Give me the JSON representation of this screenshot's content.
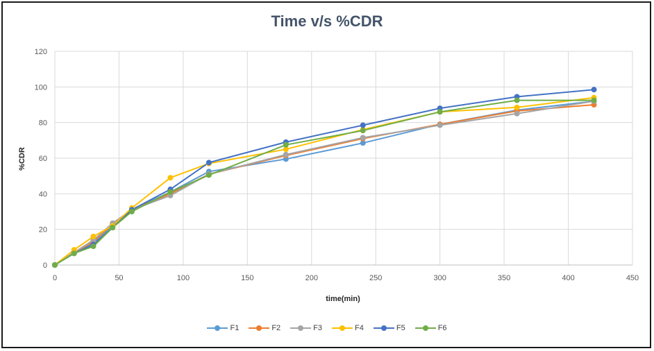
{
  "chart_data": {
    "type": "line",
    "title": "Time v/s %CDR",
    "xlabel": "time(min)",
    "ylabel": "%CDR",
    "xlim": [
      0,
      450
    ],
    "ylim": [
      0,
      120
    ],
    "x_ticks": [
      0,
      50,
      100,
      150,
      200,
      250,
      300,
      350,
      400,
      450
    ],
    "y_ticks": [
      0,
      20,
      40,
      60,
      80,
      100,
      120
    ],
    "grid": true,
    "legend_position": "bottom",
    "x": [
      0,
      15,
      30,
      45,
      60,
      90,
      120,
      180,
      240,
      300,
      360,
      420
    ],
    "series": [
      {
        "name": "F1",
        "color": "#5b9bd5",
        "values": [
          0,
          7,
          12,
          22,
          31,
          41,
          52.5,
          59.5,
          68.5,
          79,
          87,
          92
        ]
      },
      {
        "name": "F2",
        "color": "#ed7d31",
        "values": [
          0,
          7,
          13,
          23,
          31,
          40,
          51,
          61.5,
          71,
          79,
          86.5,
          90
        ]
      },
      {
        "name": "F3",
        "color": "#a5a5a5",
        "values": [
          0,
          7,
          14,
          23.5,
          31,
          39,
          51,
          62,
          71.5,
          78.5,
          85,
          92
        ]
      },
      {
        "name": "F4",
        "color": "#ffc000",
        "values": [
          0,
          8.5,
          16,
          22,
          32,
          49,
          57,
          65,
          76,
          86,
          88.5,
          94
        ]
      },
      {
        "name": "F5",
        "color": "#4472c4",
        "values": [
          0,
          6.5,
          11.5,
          21,
          31,
          42.5,
          57.5,
          69,
          78.5,
          88,
          94.5,
          98.5
        ]
      },
      {
        "name": "F6",
        "color": "#70ad47",
        "values": [
          0,
          6.5,
          10.5,
          21,
          30,
          41,
          50.5,
          67.5,
          75.5,
          86,
          92.5,
          92.5
        ]
      }
    ]
  }
}
